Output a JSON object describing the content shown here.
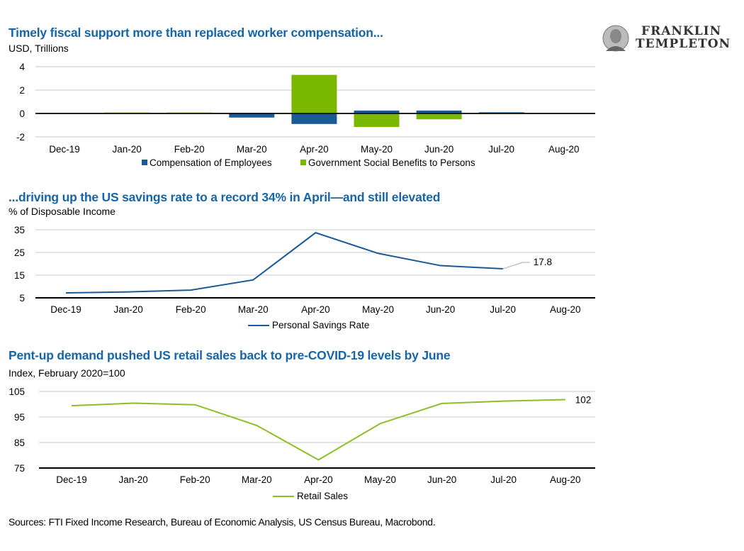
{
  "brand": {
    "line1": "FRANKLIN",
    "line2": "TEMPLETON"
  },
  "colors": {
    "title": "#1565a8",
    "comp": "#1a5a96",
    "gov": "#7ab800",
    "savings": "#1a5a96",
    "retail": "#8cbf26"
  },
  "chart_data": [
    {
      "type": "bar",
      "title": "Timely fiscal support more than replaced worker compensation...",
      "ylabel": "USD, Trillions",
      "categories": [
        "Dec-19",
        "Jan-20",
        "Feb-20",
        "Mar-20",
        "Apr-20",
        "May-20",
        "Jun-20",
        "Jul-20",
        "Aug-20"
      ],
      "series": [
        {
          "name": "Compensation of Employees",
          "color": "#1a5a96",
          "values": [
            0,
            0,
            0,
            -0.35,
            -0.9,
            0.25,
            0.25,
            0.1,
            0
          ]
        },
        {
          "name": "Government Social Benefits to Persons",
          "color": "#7ab800",
          "values": [
            0,
            0.08,
            0.08,
            0,
            3.3,
            -1.15,
            -0.5,
            -0.06,
            0
          ]
        }
      ],
      "yticks": [
        4,
        2,
        0,
        -2
      ],
      "ylim": [
        -2,
        4
      ],
      "legend": "bottom"
    },
    {
      "type": "line",
      "title": "...driving up the US savings rate to a record 34% in April—and still elevated",
      "ylabel": "% of Disposable Income",
      "categories": [
        "Dec-19",
        "Jan-20",
        "Feb-20",
        "Mar-20",
        "Apr-20",
        "May-20",
        "Jun-20",
        "Jul-20",
        "Aug-20"
      ],
      "series": [
        {
          "name": "Personal Savings Rate",
          "color": "#1a5a96",
          "values": [
            7.2,
            7.6,
            8.4,
            12.9,
            33.7,
            24.6,
            19.2,
            17.8,
            null
          ]
        }
      ],
      "yticks": [
        35,
        25,
        15,
        5
      ],
      "ylim": [
        5,
        35
      ],
      "annotation": "17.8",
      "legend": "bottom"
    },
    {
      "type": "line",
      "title": "Pent-up demand pushed US retail sales back to pre-COVID-19 levels by June",
      "ylabel": "Index, February 2020=100",
      "categories": [
        "Dec-19",
        "Jan-20",
        "Feb-20",
        "Mar-20",
        "Apr-20",
        "May-20",
        "Jun-20",
        "Jul-20",
        "Aug-20"
      ],
      "series": [
        {
          "name": "Retail Sales",
          "color": "#8cbf26",
          "values": [
            99.4,
            100.4,
            99.8,
            91.7,
            78.2,
            92.4,
            100.3,
            101.2,
            101.8
          ]
        }
      ],
      "yticks": [
        105,
        95,
        85,
        75
      ],
      "ylim": [
        75,
        105
      ],
      "annotation": "102",
      "legend": "bottom"
    }
  ],
  "sources": "Sources: FTI Fixed Income Research, Bureau of Economic Analysis, US Census Bureau, Macrobond."
}
